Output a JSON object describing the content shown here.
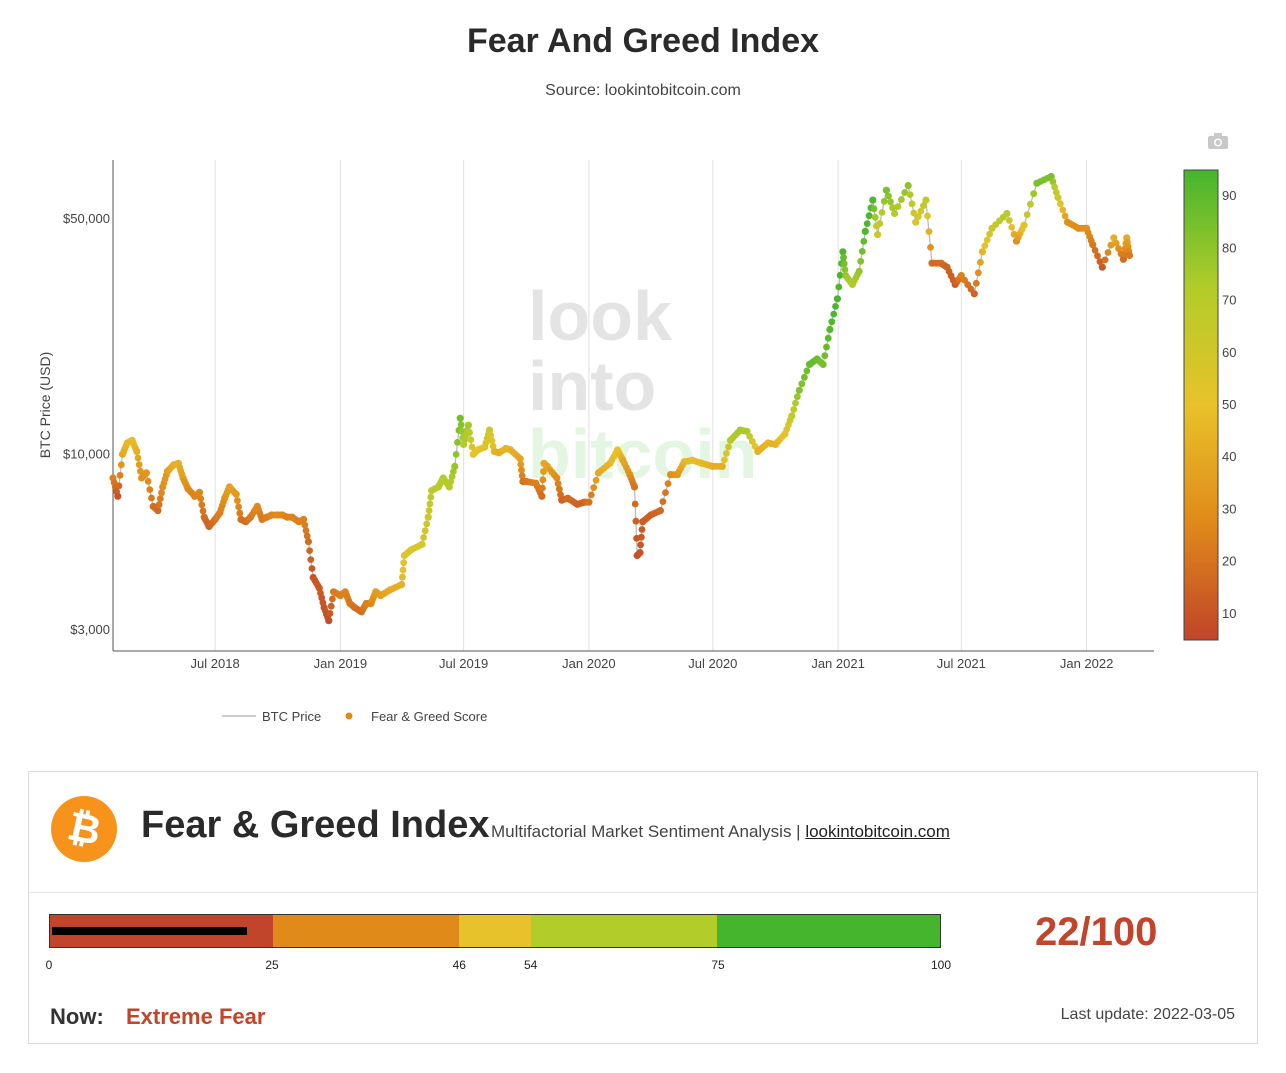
{
  "chart_data": {
    "type": "scatter",
    "title": "Fear And Greed Index",
    "subtitle": "Source: lookintobitcoin.com",
    "ylabel": "BTC Price (USD)",
    "y_scale": "log",
    "ylim": [
      2600,
      75000
    ],
    "xlim": [
      "2018-02-01",
      "2022-04-10"
    ],
    "yticks": [
      {
        "value": 50000,
        "label": "$50,000"
      },
      {
        "value": 10000,
        "label": "$10,000"
      },
      {
        "value": 3000,
        "label": "$3,000"
      }
    ],
    "xticks": [
      {
        "value": "2018-07-01",
        "label": "Jul 2018"
      },
      {
        "value": "2019-01-01",
        "label": "Jan 2019"
      },
      {
        "value": "2019-07-01",
        "label": "Jul 2019"
      },
      {
        "value": "2020-01-01",
        "label": "Jan 2020"
      },
      {
        "value": "2020-07-01",
        "label": "Jul 2020"
      },
      {
        "value": "2021-01-01",
        "label": "Jan 2021"
      },
      {
        "value": "2021-07-01",
        "label": "Jul 2021"
      },
      {
        "value": "2022-01-01",
        "label": "Jan 2022"
      }
    ],
    "grid": "vertical",
    "legend_position": "bottom-left",
    "legend": [
      {
        "name": "BTC Price",
        "color": "#cccccc"
      },
      {
        "name": "Fear & Greed Score",
        "color": "#e08a1a"
      }
    ],
    "colorbar": {
      "min": 5,
      "max": 95,
      "ticks": [
        10,
        20,
        30,
        40,
        50,
        60,
        70,
        80,
        90
      ],
      "colors": [
        "#c0452a",
        "#e08a1a",
        "#e8c22a",
        "#b2cc2a",
        "#45b52d"
      ]
    },
    "watermark": "look into bitcoin",
    "series": [
      {
        "name": "BTC Price",
        "points": [
          [
            "2018-02-01",
            8500,
            25
          ],
          [
            "2018-02-08",
            7500,
            10
          ],
          [
            "2018-02-15",
            10000,
            40
          ],
          [
            "2018-02-22",
            10800,
            45
          ],
          [
            "2018-03-01",
            11000,
            48
          ],
          [
            "2018-03-08",
            10200,
            42
          ],
          [
            "2018-03-15",
            8500,
            30
          ],
          [
            "2018-03-22",
            8800,
            32
          ],
          [
            "2018-04-01",
            7000,
            18
          ],
          [
            "2018-04-08",
            6800,
            17
          ],
          [
            "2018-04-15",
            8000,
            30
          ],
          [
            "2018-04-22",
            8900,
            35
          ],
          [
            "2018-05-01",
            9300,
            42
          ],
          [
            "2018-05-08",
            9400,
            44
          ],
          [
            "2018-05-15",
            8500,
            35
          ],
          [
            "2018-05-22",
            7900,
            28
          ],
          [
            "2018-06-01",
            7500,
            25
          ],
          [
            "2018-06-08",
            7700,
            27
          ],
          [
            "2018-06-15",
            6500,
            18
          ],
          [
            "2018-06-22",
            6100,
            15
          ],
          [
            "2018-07-01",
            6400,
            20
          ],
          [
            "2018-07-08",
            6700,
            24
          ],
          [
            "2018-07-15",
            7400,
            30
          ],
          [
            "2018-07-22",
            8000,
            38
          ],
          [
            "2018-08-01",
            7600,
            33
          ],
          [
            "2018-08-08",
            6400,
            20
          ],
          [
            "2018-08-15",
            6300,
            18
          ],
          [
            "2018-08-22",
            6500,
            22
          ],
          [
            "2018-09-01",
            7000,
            28
          ],
          [
            "2018-09-08",
            6400,
            22
          ],
          [
            "2018-09-15",
            6500,
            24
          ],
          [
            "2018-09-22",
            6600,
            26
          ],
          [
            "2018-10-01",
            6600,
            28
          ],
          [
            "2018-10-08",
            6600,
            27
          ],
          [
            "2018-10-15",
            6500,
            25
          ],
          [
            "2018-10-22",
            6500,
            25
          ],
          [
            "2018-11-01",
            6300,
            24
          ],
          [
            "2018-11-08",
            6400,
            25
          ],
          [
            "2018-11-15",
            5500,
            18
          ],
          [
            "2018-11-22",
            4300,
            10
          ],
          [
            "2018-12-01",
            4000,
            12
          ],
          [
            "2018-12-08",
            3500,
            10
          ],
          [
            "2018-12-15",
            3200,
            8
          ],
          [
            "2018-12-22",
            3900,
            22
          ],
          [
            "2019-01-01",
            3800,
            24
          ],
          [
            "2019-01-08",
            3900,
            26
          ],
          [
            "2019-01-15",
            3600,
            22
          ],
          [
            "2019-01-22",
            3500,
            20
          ],
          [
            "2019-02-01",
            3400,
            18
          ],
          [
            "2019-02-08",
            3600,
            24
          ],
          [
            "2019-02-15",
            3600,
            26
          ],
          [
            "2019-02-22",
            3900,
            34
          ],
          [
            "2019-03-01",
            3800,
            36
          ],
          [
            "2019-03-15",
            3950,
            40
          ],
          [
            "2019-04-01",
            4100,
            43
          ],
          [
            "2019-04-05",
            5000,
            55
          ],
          [
            "2019-04-15",
            5200,
            56
          ],
          [
            "2019-05-01",
            5400,
            57
          ],
          [
            "2019-05-10",
            6500,
            62
          ],
          [
            "2019-05-15",
            7800,
            68
          ],
          [
            "2019-05-25",
            8000,
            70
          ],
          [
            "2019-06-01",
            8500,
            72
          ],
          [
            "2019-06-10",
            8000,
            70
          ],
          [
            "2019-06-18",
            9200,
            78
          ],
          [
            "2019-06-26",
            12800,
            85
          ],
          [
            "2019-07-01",
            10700,
            72
          ],
          [
            "2019-07-08",
            12200,
            75
          ],
          [
            "2019-07-15",
            10000,
            50
          ],
          [
            "2019-07-22",
            10300,
            50
          ],
          [
            "2019-08-01",
            10500,
            55
          ],
          [
            "2019-08-08",
            11800,
            60
          ],
          [
            "2019-08-15",
            10200,
            45
          ],
          [
            "2019-08-22",
            10100,
            42
          ],
          [
            "2019-09-01",
            10400,
            45
          ],
          [
            "2019-09-08",
            10300,
            44
          ],
          [
            "2019-09-22",
            9700,
            38
          ],
          [
            "2019-09-26",
            8300,
            20
          ],
          [
            "2019-10-01",
            8300,
            22
          ],
          [
            "2019-10-15",
            8200,
            25
          ],
          [
            "2019-10-24",
            7500,
            18
          ],
          [
            "2019-10-27",
            9400,
            40
          ],
          [
            "2019-11-01",
            9200,
            38
          ],
          [
            "2019-11-15",
            8500,
            28
          ],
          [
            "2019-11-22",
            7300,
            15
          ],
          [
            "2019-12-01",
            7400,
            18
          ],
          [
            "2019-12-15",
            7100,
            14
          ],
          [
            "2019-12-25",
            7200,
            15
          ],
          [
            "2020-01-01",
            7200,
            20
          ],
          [
            "2020-01-15",
            8800,
            40
          ],
          [
            "2020-02-01",
            9400,
            45
          ],
          [
            "2020-02-12",
            10300,
            52
          ],
          [
            "2020-02-20",
            9600,
            40
          ],
          [
            "2020-03-01",
            8700,
            30
          ],
          [
            "2020-03-08",
            8000,
            20
          ],
          [
            "2020-03-12",
            5000,
            8
          ],
          [
            "2020-03-16",
            5100,
            10
          ],
          [
            "2020-03-20",
            6300,
            13
          ],
          [
            "2020-04-01",
            6600,
            14
          ],
          [
            "2020-04-15",
            6800,
            16
          ],
          [
            "2020-04-30",
            8700,
            28
          ],
          [
            "2020-05-10",
            8700,
            32
          ],
          [
            "2020-05-20",
            9500,
            45
          ],
          [
            "2020-06-01",
            9600,
            48
          ],
          [
            "2020-06-15",
            9400,
            46
          ],
          [
            "2020-07-01",
            9200,
            42
          ],
          [
            "2020-07-15",
            9200,
            42
          ],
          [
            "2020-07-27",
            11000,
            72
          ],
          [
            "2020-08-10",
            11800,
            75
          ],
          [
            "2020-08-20",
            11700,
            74
          ],
          [
            "2020-09-05",
            10200,
            42
          ],
          [
            "2020-09-20",
            10800,
            45
          ],
          [
            "2020-10-01",
            10700,
            43
          ],
          [
            "2020-10-15",
            11500,
            52
          ],
          [
            "2020-10-25",
            13000,
            65
          ],
          [
            "2020-11-05",
            15500,
            82
          ],
          [
            "2020-11-20",
            18500,
            88
          ],
          [
            "2020-12-01",
            19200,
            88
          ],
          [
            "2020-12-10",
            18500,
            84
          ],
          [
            "2020-12-20",
            23500,
            92
          ],
          [
            "2020-12-31",
            29000,
            94
          ],
          [
            "2021-01-08",
            40000,
            93
          ],
          [
            "2021-01-12",
            34000,
            78
          ],
          [
            "2021-01-22",
            32000,
            72
          ],
          [
            "2021-02-01",
            35000,
            78
          ],
          [
            "2021-02-10",
            46000,
            93
          ],
          [
            "2021-02-21",
            57000,
            93
          ],
          [
            "2021-02-28",
            45000,
            60
          ],
          [
            "2021-03-13",
            61000,
            84
          ],
          [
            "2021-03-25",
            52000,
            72
          ],
          [
            "2021-04-14",
            63000,
            80
          ],
          [
            "2021-04-25",
            49000,
            55
          ],
          [
            "2021-05-10",
            57000,
            67
          ],
          [
            "2021-05-19",
            37000,
            18
          ],
          [
            "2021-06-01",
            37000,
            18
          ],
          [
            "2021-06-10",
            36000,
            15
          ],
          [
            "2021-06-22",
            32000,
            12
          ],
          [
            "2021-07-01",
            34000,
            25
          ],
          [
            "2021-07-20",
            30000,
            15
          ],
          [
            "2021-08-01",
            40000,
            45
          ],
          [
            "2021-08-15",
            47000,
            62
          ],
          [
            "2021-09-06",
            52000,
            72
          ],
          [
            "2021-09-20",
            43000,
            30
          ],
          [
            "2021-10-01",
            48000,
            55
          ],
          [
            "2021-10-20",
            64000,
            84
          ],
          [
            "2021-11-10",
            67000,
            84
          ],
          [
            "2021-11-20",
            58000,
            60
          ],
          [
            "2021-12-04",
            49000,
            30
          ],
          [
            "2021-12-20",
            47000,
            28
          ],
          [
            "2022-01-01",
            47000,
            30
          ],
          [
            "2022-01-10",
            42000,
            22
          ],
          [
            "2022-01-24",
            36000,
            12
          ],
          [
            "2022-02-10",
            44000,
            42
          ],
          [
            "2022-02-24",
            38000,
            18
          ],
          [
            "2022-03-01",
            44000,
            40
          ],
          [
            "2022-03-05",
            39000,
            22
          ]
        ]
      }
    ]
  },
  "panel": {
    "logo_glyph": "₿",
    "title": "Fear & Greed Index",
    "subtitle": "Multifactorial Market Sentiment Analysis |",
    "link_text": "lookintobitcoin.com",
    "gauge": {
      "segments": [
        {
          "from": 0,
          "to": 25,
          "color": "#c0452a"
        },
        {
          "from": 25,
          "to": 46,
          "color": "#e08a1a"
        },
        {
          "from": 46,
          "to": 54,
          "color": "#e8c22a"
        },
        {
          "from": 54,
          "to": 75,
          "color": "#b2cc2a"
        },
        {
          "from": 75,
          "to": 100,
          "color": "#45b52d"
        }
      ],
      "ticks": [
        "0",
        "25",
        "46",
        "54",
        "75",
        "100"
      ],
      "value": 22
    },
    "score": "22/100",
    "now_label": "Now:",
    "now_value": "Extreme Fear",
    "last_update": "Last update: 2022-03-05"
  }
}
